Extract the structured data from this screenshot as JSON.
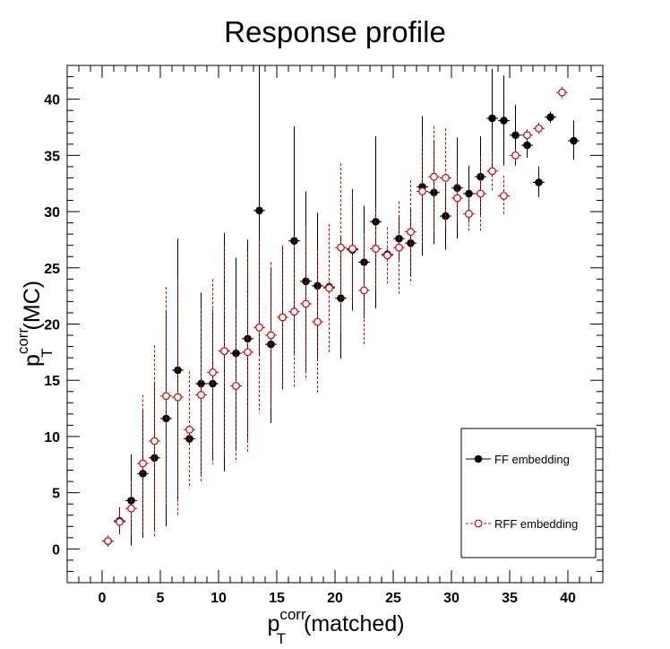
{
  "chart_data": {
    "type": "scatter",
    "title": "Response profile",
    "xlabel": {
      "base": "p",
      "sup": "corr",
      "sub": "T",
      "suffix": "(matched)"
    },
    "ylabel": {
      "base": "p",
      "sup": "corr",
      "sub": "T",
      "suffix": "(MC)"
    },
    "xlim": [
      -3,
      43
    ],
    "ylim": [
      -3,
      43
    ],
    "xticks": [
      0,
      5,
      10,
      15,
      20,
      25,
      30,
      35,
      40
    ],
    "yticks": [
      0,
      5,
      10,
      15,
      20,
      25,
      30,
      35,
      40
    ],
    "grid": false,
    "legend_position": "bottom-right",
    "series": [
      {
        "name": "FF embedding",
        "color": "#000000",
        "marker": "filled-circle",
        "line_style": "solid",
        "points": [
          {
            "x": 0.5,
            "y": 0.7,
            "lo": 0.2,
            "hi": 1.2
          },
          {
            "x": 1.5,
            "y": 2.5,
            "lo": 1.3,
            "hi": 3.7
          },
          {
            "x": 2.5,
            "y": 4.3,
            "lo": 0.3,
            "hi": 8.4
          },
          {
            "x": 3.5,
            "y": 6.7,
            "lo": 1.0,
            "hi": 12.4
          },
          {
            "x": 4.5,
            "y": 8.1,
            "lo": 1.5,
            "hi": 14.7
          },
          {
            "x": 5.5,
            "y": 11.6,
            "lo": 2.0,
            "hi": 21.2
          },
          {
            "x": 6.5,
            "y": 15.9,
            "lo": 4.2,
            "hi": 27.6
          },
          {
            "x": 7.5,
            "y": 9.8,
            "lo": 9.3,
            "hi": 10.3
          },
          {
            "x": 8.5,
            "y": 14.7,
            "lo": 6.6,
            "hi": 22.8
          },
          {
            "x": 9.5,
            "y": 14.7,
            "lo": 8.0,
            "hi": 21.3
          },
          {
            "x": 10.5,
            "y": 17.6,
            "lo": 6.9,
            "hi": 28.1
          },
          {
            "x": 11.5,
            "y": 17.4,
            "lo": 8.7,
            "hi": 25.9
          },
          {
            "x": 12.5,
            "y": 18.7,
            "lo": 9.7,
            "hi": 27.5
          },
          {
            "x": 13.5,
            "y": 30.1,
            "lo": 17.2,
            "hi": 43.0
          },
          {
            "x": 14.5,
            "y": 18.2,
            "lo": 11.2,
            "hi": 25.1
          },
          {
            "x": 15.5,
            "y": 20.6,
            "lo": 14.2,
            "hi": 27.0
          },
          {
            "x": 16.5,
            "y": 27.4,
            "lo": 17.2,
            "hi": 37.6
          },
          {
            "x": 17.5,
            "y": 23.8,
            "lo": 15.8,
            "hi": 31.8
          },
          {
            "x": 18.5,
            "y": 23.4,
            "lo": 16.9,
            "hi": 29.9
          },
          {
            "x": 19.5,
            "y": 23.3,
            "lo": 22.8,
            "hi": 23.8
          },
          {
            "x": 20.5,
            "y": 22.3,
            "lo": 16.9,
            "hi": 27.7
          },
          {
            "x": 21.5,
            "y": 26.6,
            "lo": 21.2,
            "hi": 32.0
          },
          {
            "x": 22.5,
            "y": 25.5,
            "lo": 20.5,
            "hi": 30.5
          },
          {
            "x": 23.5,
            "y": 29.1,
            "lo": 21.4,
            "hi": 36.7
          },
          {
            "x": 24.5,
            "y": 26.2,
            "lo": 25.7,
            "hi": 26.7
          },
          {
            "x": 25.5,
            "y": 27.6,
            "lo": 25.7,
            "hi": 29.5
          },
          {
            "x": 26.5,
            "y": 27.2,
            "lo": 24.2,
            "hi": 30.2
          },
          {
            "x": 27.5,
            "y": 32.2,
            "lo": 26.1,
            "hi": 38.5
          },
          {
            "x": 28.5,
            "y": 31.7,
            "lo": 27.1,
            "hi": 36.2
          },
          {
            "x": 29.5,
            "y": 29.6,
            "lo": 26.6,
            "hi": 32.6
          },
          {
            "x": 30.5,
            "y": 32.1,
            "lo": 27.6,
            "hi": 36.6
          },
          {
            "x": 31.5,
            "y": 31.6,
            "lo": 29.0,
            "hi": 34.1
          },
          {
            "x": 32.5,
            "y": 33.1,
            "lo": 29.6,
            "hi": 36.7
          },
          {
            "x": 33.5,
            "y": 38.3,
            "lo": 33.8,
            "hi": 42.7
          },
          {
            "x": 34.5,
            "y": 38.1,
            "lo": 34.1,
            "hi": 42.1
          },
          {
            "x": 35.5,
            "y": 36.8,
            "lo": 34.1,
            "hi": 39.5
          },
          {
            "x": 36.5,
            "y": 35.9,
            "lo": 34.8,
            "hi": 37.0
          },
          {
            "x": 37.5,
            "y": 32.6,
            "lo": 31.3,
            "hi": 34.0
          },
          {
            "x": 38.5,
            "y": 38.4,
            "lo": 37.9,
            "hi": 38.9
          },
          {
            "x": 40.5,
            "y": 36.3,
            "lo": 34.6,
            "hi": 38.1
          }
        ]
      },
      {
        "name": "RFF embedding",
        "color": "#cc0000",
        "marker": "open-circle",
        "line_style": "dashed",
        "points": [
          {
            "x": 0.5,
            "y": 0.7,
            "lo": 0.2,
            "hi": 1.2
          },
          {
            "x": 1.5,
            "y": 2.4,
            "lo": 1.2,
            "hi": 3.6
          },
          {
            "x": 2.5,
            "y": 3.6,
            "lo": 1.2,
            "hi": 6.0
          },
          {
            "x": 3.5,
            "y": 7.6,
            "lo": 1.5,
            "hi": 13.7
          },
          {
            "x": 4.5,
            "y": 9.6,
            "lo": 1.1,
            "hi": 18.1
          },
          {
            "x": 5.5,
            "y": 13.6,
            "lo": 3.9,
            "hi": 23.3
          },
          {
            "x": 6.5,
            "y": 13.5,
            "lo": 3.0,
            "hi": 24.0
          },
          {
            "x": 7.5,
            "y": 10.6,
            "lo": 5.4,
            "hi": 15.8
          },
          {
            "x": 8.5,
            "y": 13.7,
            "lo": 6.0,
            "hi": 21.4
          },
          {
            "x": 9.5,
            "y": 15.7,
            "lo": 7.5,
            "hi": 24.0
          },
          {
            "x": 10.5,
            "y": 17.6,
            "lo": 8.3,
            "hi": 26.9
          },
          {
            "x": 11.5,
            "y": 14.5,
            "lo": 7.7,
            "hi": 21.3
          },
          {
            "x": 12.5,
            "y": 17.5,
            "lo": 8.6,
            "hi": 26.4
          },
          {
            "x": 13.5,
            "y": 19.7,
            "lo": 12.1,
            "hi": 27.3
          },
          {
            "x": 14.5,
            "y": 19.0,
            "lo": 12.5,
            "hi": 25.5
          },
          {
            "x": 15.5,
            "y": 20.6,
            "lo": 14.2,
            "hi": 27.0
          },
          {
            "x": 16.5,
            "y": 21.1,
            "lo": 14.4,
            "hi": 27.8
          },
          {
            "x": 17.5,
            "y": 21.8,
            "lo": 15.0,
            "hi": 28.6
          },
          {
            "x": 18.5,
            "y": 20.2,
            "lo": 13.9,
            "hi": 26.5
          },
          {
            "x": 19.5,
            "y": 23.2,
            "lo": 17.5,
            "hi": 28.9
          },
          {
            "x": 20.5,
            "y": 26.8,
            "lo": 19.3,
            "hi": 34.3
          },
          {
            "x": 21.5,
            "y": 26.7,
            "lo": 21.7,
            "hi": 31.7
          },
          {
            "x": 22.5,
            "y": 23.0,
            "lo": 18.0,
            "hi": 28.0
          },
          {
            "x": 23.5,
            "y": 26.7,
            "lo": 23.0,
            "hi": 30.4
          },
          {
            "x": 24.5,
            "y": 26.1,
            "lo": 23.6,
            "hi": 28.6
          },
          {
            "x": 25.5,
            "y": 26.8,
            "lo": 22.7,
            "hi": 30.9
          },
          {
            "x": 26.5,
            "y": 28.2,
            "lo": 23.6,
            "hi": 32.8
          },
          {
            "x": 27.5,
            "y": 31.8,
            "lo": 27.0,
            "hi": 36.6
          },
          {
            "x": 28.5,
            "y": 33.1,
            "lo": 28.1,
            "hi": 37.6
          },
          {
            "x": 29.5,
            "y": 33.0,
            "lo": 28.6,
            "hi": 37.4
          },
          {
            "x": 30.5,
            "y": 31.2,
            "lo": 28.8,
            "hi": 33.6
          },
          {
            "x": 31.5,
            "y": 29.8,
            "lo": 28.3,
            "hi": 31.3
          },
          {
            "x": 32.5,
            "y": 31.6,
            "lo": 28.3,
            "hi": 34.9
          },
          {
            "x": 33.5,
            "y": 33.6,
            "lo": 31.9,
            "hi": 35.3
          },
          {
            "x": 34.5,
            "y": 31.4,
            "lo": 29.6,
            "hi": 33.2
          },
          {
            "x": 35.5,
            "y": 35.0,
            "lo": 34.5,
            "hi": 35.5
          },
          {
            "x": 36.5,
            "y": 36.8,
            "lo": 36.3,
            "hi": 37.3
          },
          {
            "x": 37.5,
            "y": 37.4,
            "lo": 36.9,
            "hi": 37.9
          },
          {
            "x": 39.5,
            "y": 40.6,
            "lo": 40.1,
            "hi": 41.1
          }
        ]
      }
    ]
  }
}
